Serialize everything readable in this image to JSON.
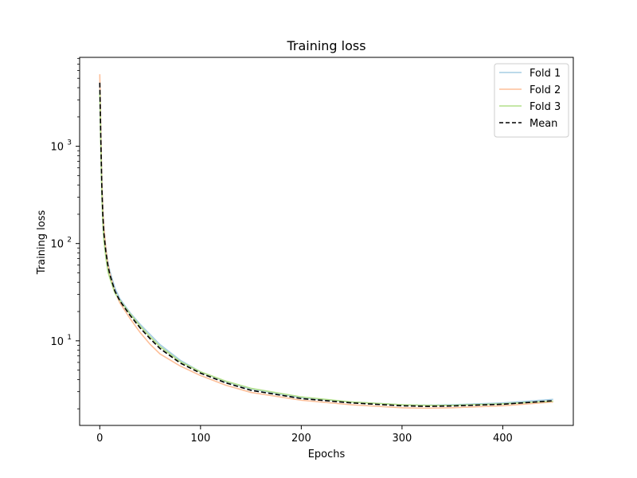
{
  "chart_data": {
    "type": "line",
    "title": "Training loss",
    "xlabel": "Epochs",
    "ylabel": "Training loss",
    "xlim": [
      -20,
      470
    ],
    "ylim": [
      1.35,
      8200
    ],
    "yscale": "log",
    "x_ticks": [
      0,
      100,
      200,
      300,
      400
    ],
    "y_ticks": [
      {
        "value": 10,
        "base": "10",
        "exp": "1"
      },
      {
        "value": 100,
        "base": "10",
        "exp": "2"
      },
      {
        "value": 1000,
        "base": "10",
        "exp": "3"
      }
    ],
    "grid": false,
    "legend_position": "top-right",
    "x": [
      0,
      1,
      2,
      3,
      4,
      6,
      8,
      10,
      15,
      20,
      30,
      40,
      50,
      60,
      80,
      100,
      125,
      150,
      200,
      250,
      300,
      325,
      350,
      400,
      450
    ],
    "series": [
      {
        "name": "Fold 1",
        "color": "#a6cee3",
        "dash": "solid",
        "values": [
          4500,
          1300,
          420,
          220,
          150,
          90,
          65,
          52,
          35,
          27,
          19.5,
          14.8,
          11.6,
          9.1,
          6.3,
          4.8,
          3.8,
          3.2,
          2.6,
          2.35,
          2.2,
          2.18,
          2.2,
          2.3,
          2.5
        ]
      },
      {
        "name": "Fold 2",
        "color": "#fdbf99",
        "dash": "solid",
        "values": [
          5500,
          1500,
          450,
          230,
          150,
          88,
          62,
          49,
          32,
          24.5,
          17,
          12.2,
          9.2,
          7.3,
          5.5,
          4.4,
          3.5,
          2.95,
          2.45,
          2.2,
          2.05,
          2.03,
          2.05,
          2.15,
          2.35
        ]
      },
      {
        "name": "Fold 3",
        "color": "#b2df8a",
        "dash": "solid",
        "values": [
          3700,
          1000,
          330,
          170,
          110,
          72,
          52,
          44,
          31,
          26,
          19,
          14.2,
          11,
          8.7,
          6.1,
          4.8,
          3.85,
          3.25,
          2.65,
          2.35,
          2.2,
          2.17,
          2.17,
          2.25,
          2.4
        ]
      },
      {
        "name": "Mean",
        "color": "#000000",
        "dash": "dashed",
        "values": [
          4500,
          1250,
          400,
          200,
          130,
          83,
          60,
          48,
          32.5,
          25.7,
          18.3,
          13.6,
          10.5,
          8.3,
          5.9,
          4.65,
          3.7,
          3.1,
          2.55,
          2.3,
          2.15,
          2.12,
          2.14,
          2.23,
          2.42
        ]
      }
    ]
  }
}
